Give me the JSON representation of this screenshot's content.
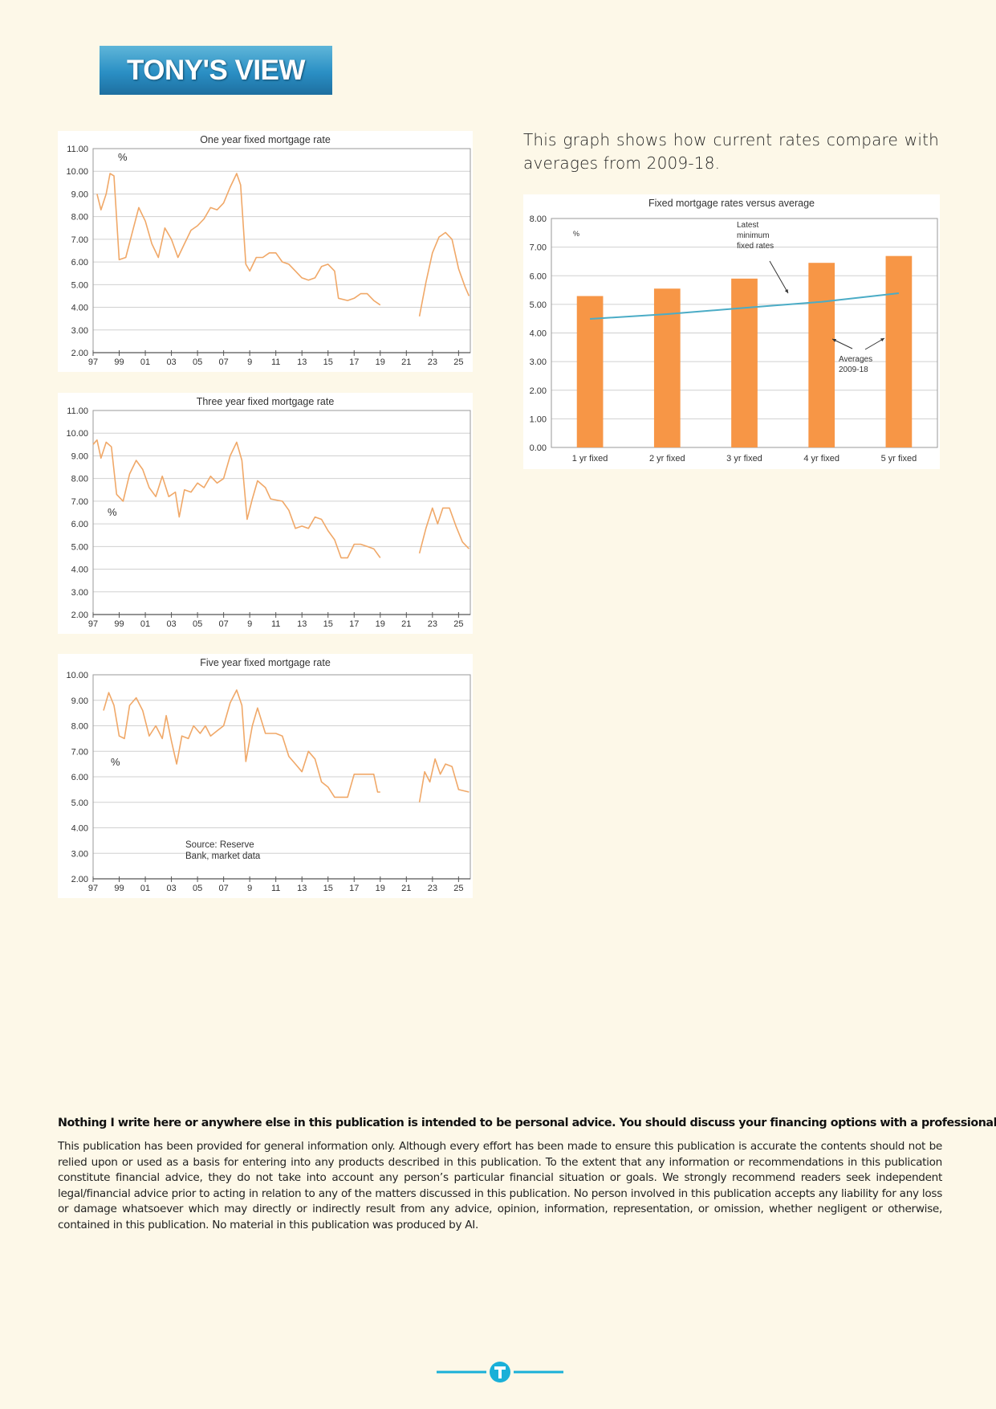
{
  "logo": "TONY'S VIEW",
  "intro": "This graph shows how current rates compare with averages from 2009-18.",
  "chart_data": [
    {
      "type": "line",
      "title": "One year fixed mortgage rate",
      "color": "#f0a868",
      "grid": true,
      "annotations": [
        "%"
      ],
      "xlim": [
        1997,
        2025.9
      ],
      "xticks": [
        {
          "value": 1997,
          "label": "97"
        },
        {
          "value": 1999,
          "label": "99"
        },
        {
          "value": 2001,
          "label": "01"
        },
        {
          "value": 2003,
          "label": "03"
        },
        {
          "value": 2005,
          "label": "05"
        },
        {
          "value": 2007,
          "label": "07"
        },
        {
          "value": 2009,
          "label": "9"
        },
        {
          "value": 2011,
          "label": "11"
        },
        {
          "value": 2013,
          "label": "13"
        },
        {
          "value": 2015,
          "label": "15"
        },
        {
          "value": 2017,
          "label": "17"
        },
        {
          "value": 2019,
          "label": "19"
        },
        {
          "value": 2021,
          "label": "21"
        },
        {
          "value": 2023,
          "label": "23"
        },
        {
          "value": 2025,
          "label": "25"
        }
      ],
      "ylim": [
        2,
        11
      ],
      "yticks": [
        {
          "value": 2,
          "label": "2.00"
        },
        {
          "value": 3,
          "label": "3.00"
        },
        {
          "value": 4,
          "label": "4.00"
        },
        {
          "value": 5,
          "label": "5.00"
        },
        {
          "value": 6,
          "label": "6.00"
        },
        {
          "value": 7,
          "label": "7.00"
        },
        {
          "value": 8,
          "label": "8.00"
        },
        {
          "value": 9,
          "label": "9.00"
        },
        {
          "value": 10,
          "label": "10.00"
        },
        {
          "value": 11,
          "label": "11.00"
        }
      ],
      "x": [
        1997.3,
        1997.6,
        1998.0,
        1998.3,
        1998.6,
        1999.0,
        1999.5,
        2000.0,
        2000.5,
        2001.0,
        2001.5,
        2002.0,
        2002.5,
        2003.0,
        2003.5,
        2004.0,
        2004.5,
        2005.0,
        2005.5,
        2006.0,
        2006.5,
        2007.0,
        2007.5,
        2008.0,
        2008.3,
        2008.7,
        2009.0,
        2009.5,
        2010.0,
        2010.5,
        2011.0,
        2011.5,
        2012.0,
        2012.5,
        2013.0,
        2013.5,
        2014.0,
        2014.5,
        2015.0,
        2015.5,
        2015.8,
        2016.5,
        2017.0,
        2017.5,
        2018.0,
        2018.5,
        2019.0,
        2020.5,
        2022.0,
        2022.5,
        2023.0,
        2023.5,
        2024.0,
        2024.5,
        2025.0,
        2025.5,
        2025.8
      ],
      "values": [
        9.0,
        8.3,
        9.0,
        9.9,
        9.8,
        6.1,
        6.2,
        7.3,
        8.4,
        7.8,
        6.8,
        6.2,
        7.5,
        7.0,
        6.2,
        6.8,
        7.4,
        7.6,
        7.9,
        8.4,
        8.3,
        8.6,
        9.3,
        9.9,
        9.4,
        5.9,
        5.6,
        6.2,
        6.2,
        6.4,
        6.4,
        6.0,
        5.9,
        5.6,
        5.3,
        5.2,
        5.3,
        5.8,
        5.9,
        5.6,
        4.4,
        4.3,
        4.4,
        4.6,
        4.6,
        4.3,
        4.1,
        null,
        3.6,
        5.1,
        6.4,
        7.1,
        7.3,
        7.0,
        5.7,
        4.9,
        4.5
      ]
    },
    {
      "type": "line",
      "title": "Three year fixed mortgage rate",
      "color": "#f0a868",
      "grid": true,
      "annotations": [
        "%"
      ],
      "xlim": [
        1997,
        2025.9
      ],
      "xticks": [
        {
          "value": 1997,
          "label": "97"
        },
        {
          "value": 1999,
          "label": "99"
        },
        {
          "value": 2001,
          "label": "01"
        },
        {
          "value": 2003,
          "label": "03"
        },
        {
          "value": 2005,
          "label": "05"
        },
        {
          "value": 2007,
          "label": "07"
        },
        {
          "value": 2009,
          "label": "9"
        },
        {
          "value": 2011,
          "label": "11"
        },
        {
          "value": 2013,
          "label": "13"
        },
        {
          "value": 2015,
          "label": "15"
        },
        {
          "value": 2017,
          "label": "17"
        },
        {
          "value": 2019,
          "label": "19"
        },
        {
          "value": 2021,
          "label": "21"
        },
        {
          "value": 2023,
          "label": "23"
        },
        {
          "value": 2025,
          "label": "25"
        }
      ],
      "ylim": [
        2,
        11
      ],
      "yticks": [
        {
          "value": 2,
          "label": "2.00"
        },
        {
          "value": 3,
          "label": "3.00"
        },
        {
          "value": 4,
          "label": "4.00"
        },
        {
          "value": 5,
          "label": "5.00"
        },
        {
          "value": 6,
          "label": "6.00"
        },
        {
          "value": 7,
          "label": "7.00"
        },
        {
          "value": 8,
          "label": "8.00"
        },
        {
          "value": 9,
          "label": "9.00"
        },
        {
          "value": 10,
          "label": "10.00"
        },
        {
          "value": 11,
          "label": "11.00"
        }
      ],
      "x": [
        1997.0,
        1997.3,
        1997.6,
        1998.0,
        1998.4,
        1998.8,
        1999.3,
        1999.8,
        2000.3,
        2000.8,
        2001.3,
        2001.8,
        2002.3,
        2002.8,
        2003.3,
        2003.6,
        2004.0,
        2004.5,
        2005.0,
        2005.5,
        2006.0,
        2006.5,
        2007.0,
        2007.5,
        2008.0,
        2008.4,
        2008.8,
        2009.2,
        2009.6,
        2010.2,
        2010.6,
        2011.5,
        2012.0,
        2012.5,
        2013.0,
        2013.5,
        2014.0,
        2014.5,
        2015.0,
        2015.5,
        2016.0,
        2016.5,
        2017.0,
        2017.5,
        2018.0,
        2018.5,
        2019.0,
        2020.5,
        2022.0,
        2022.5,
        2023.0,
        2023.4,
        2023.8,
        2024.3,
        2024.8,
        2025.3,
        2025.8
      ],
      "values": [
        9.5,
        9.7,
        8.9,
        9.6,
        9.4,
        7.3,
        7.0,
        8.2,
        8.8,
        8.4,
        7.6,
        7.2,
        8.1,
        7.2,
        7.4,
        6.3,
        7.5,
        7.4,
        7.8,
        7.6,
        8.1,
        7.8,
        8.0,
        9.0,
        9.6,
        8.8,
        6.2,
        7.1,
        7.9,
        7.6,
        7.1,
        7.0,
        6.6,
        5.8,
        5.9,
        5.8,
        6.3,
        6.2,
        5.7,
        5.3,
        4.5,
        4.5,
        5.1,
        5.1,
        5.0,
        4.9,
        4.5,
        null,
        4.7,
        5.8,
        6.7,
        6.0,
        6.7,
        6.7,
        5.9,
        5.2,
        4.9
      ]
    },
    {
      "type": "line",
      "title": "Five year fixed mortgage rate",
      "color": "#f0a868",
      "grid": true,
      "annotations": [
        "%",
        "Source: Reserve",
        "Bank, market data"
      ],
      "xlim": [
        1997,
        2025.9
      ],
      "xticks": [
        {
          "value": 1997,
          "label": "97"
        },
        {
          "value": 1999,
          "label": "99"
        },
        {
          "value": 2001,
          "label": "01"
        },
        {
          "value": 2003,
          "label": "03"
        },
        {
          "value": 2005,
          "label": "05"
        },
        {
          "value": 2007,
          "label": "07"
        },
        {
          "value": 2009,
          "label": "9"
        },
        {
          "value": 2011,
          "label": "11"
        },
        {
          "value": 2013,
          "label": "13"
        },
        {
          "value": 2015,
          "label": "15"
        },
        {
          "value": 2017,
          "label": "17"
        },
        {
          "value": 2019,
          "label": "19"
        },
        {
          "value": 2021,
          "label": "21"
        },
        {
          "value": 2023,
          "label": "23"
        },
        {
          "value": 2025,
          "label": "25"
        }
      ],
      "ylim": [
        2,
        10
      ],
      "yticks": [
        {
          "value": 2,
          "label": "2.00"
        },
        {
          "value": 3,
          "label": "3.00"
        },
        {
          "value": 4,
          "label": "4.00"
        },
        {
          "value": 5,
          "label": "5.00"
        },
        {
          "value": 6,
          "label": "6.00"
        },
        {
          "value": 7,
          "label": "7.00"
        },
        {
          "value": 8,
          "label": "8.00"
        },
        {
          "value": 9,
          "label": "9.00"
        },
        {
          "value": 10,
          "label": "10.00"
        }
      ],
      "x": [
        1997.8,
        1998.2,
        1998.6,
        1999.0,
        1999.4,
        1999.8,
        2000.3,
        2000.8,
        2001.3,
        2001.8,
        2002.3,
        2002.6,
        2003.0,
        2003.4,
        2003.8,
        2004.3,
        2004.7,
        2005.2,
        2005.6,
        2006.0,
        2006.5,
        2007.0,
        2007.5,
        2008.0,
        2008.4,
        2008.7,
        2009.2,
        2009.6,
        2010.2,
        2011.0,
        2011.5,
        2012.0,
        2012.5,
        2013.0,
        2013.5,
        2014.0,
        2014.5,
        2015.0,
        2015.5,
        2016.5,
        2017.0,
        2017.5,
        2018.5,
        2018.8,
        2019.0,
        2020.5,
        2022.0,
        2022.4,
        2022.8,
        2023.2,
        2023.6,
        2024.0,
        2024.5,
        2025.0,
        2025.8
      ],
      "values": [
        8.6,
        9.3,
        8.8,
        7.6,
        7.5,
        8.8,
        9.1,
        8.6,
        7.6,
        8.0,
        7.5,
        8.4,
        7.4,
        6.5,
        7.6,
        7.5,
        8.0,
        7.7,
        8.0,
        7.6,
        7.8,
        8.0,
        8.9,
        9.4,
        8.8,
        6.6,
        8.0,
        8.7,
        7.7,
        7.7,
        7.6,
        6.8,
        6.5,
        6.2,
        7.0,
        6.7,
        5.8,
        5.6,
        5.2,
        5.2,
        6.1,
        6.1,
        6.1,
        5.4,
        5.4,
        null,
        5.0,
        6.2,
        5.8,
        6.7,
        6.1,
        6.5,
        6.4,
        5.5,
        5.4
      ]
    },
    {
      "type": "bar",
      "title": "Fixed mortgage rates versus average",
      "grid": true,
      "annotations": [
        "%",
        "Latest",
        "minimum",
        "fixed rates",
        "Averages",
        "2009-18"
      ],
      "categories": [
        "1 yr fixed",
        "2 yr fixed",
        "3 yr fixed",
        "4 yr fixed",
        "5 yr fixed"
      ],
      "ylim": [
        0,
        8
      ],
      "yticks": [
        {
          "value": 0,
          "label": "0.00"
        },
        {
          "value": 1,
          "label": "1.00"
        },
        {
          "value": 2,
          "label": "2.00"
        },
        {
          "value": 3,
          "label": "3.00"
        },
        {
          "value": 4,
          "label": "4.00"
        },
        {
          "value": 5,
          "label": "5.00"
        },
        {
          "value": 6,
          "label": "6.00"
        },
        {
          "value": 7,
          "label": "7.00"
        },
        {
          "value": 8,
          "label": "8.00"
        }
      ],
      "series": [
        {
          "type": "bar",
          "color": "#f79646",
          "values": [
            5.29,
            5.55,
            5.9,
            6.45,
            6.69
          ]
        },
        {
          "type": "line",
          "color": "#4bacc6",
          "values": [
            4.49,
            4.66,
            4.88,
            5.09,
            5.39
          ]
        }
      ]
    }
  ],
  "disclaimer": {
    "heading": "Nothing I write here or anywhere else in this publication is intended to be personal advice. You should discuss your financing options with a professional.",
    "body": "This publication has been provided for general information only. Although every effort has been made to ensure this publication is accurate the contents should not be relied upon or used as a basis for entering into any products described in this publication. To the extent that any information or recommendations in this publication constitute financial advice, they do not take into account any person’s particular financial situation or goals. We strongly recommend readers seek independent legal/financial advice prior to acting in relation to any of the matters discussed in this publication. No person involved in this publication accepts any liability for any loss or damage whatsoever which may directly or indirectly result from any advice, opinion, information, representation, or omission, whether negligent or otherwise, contained in this publication. No material in this publication was produced by AI."
  }
}
